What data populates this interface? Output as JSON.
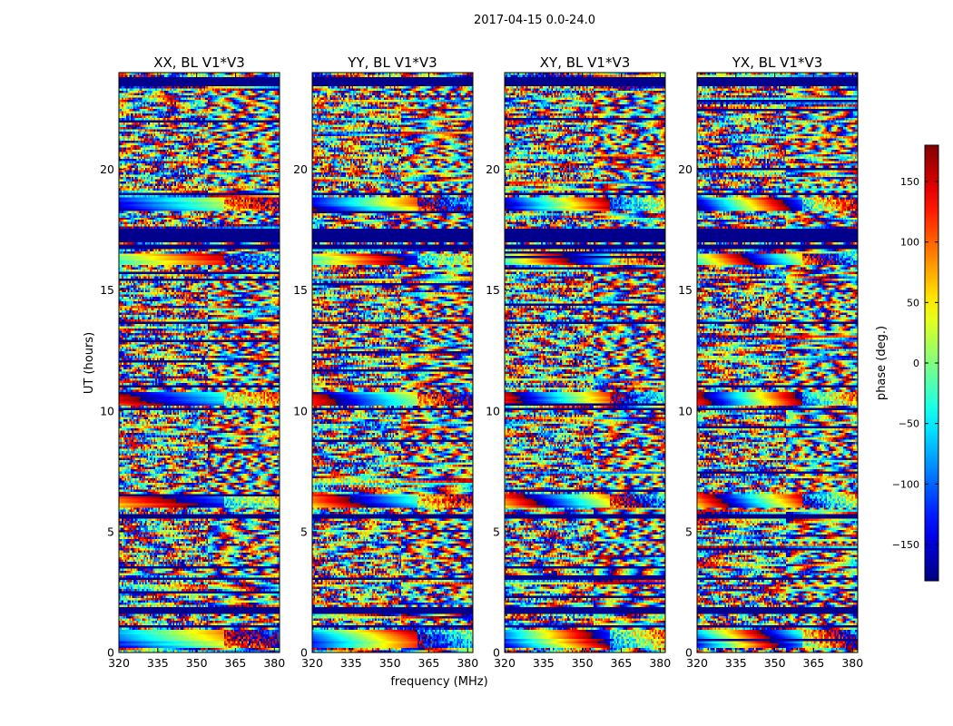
{
  "suptitle": "2017-04-15 0.0-24.0",
  "chart_data": {
    "type": "heatmap",
    "xlabel": "frequency (MHz)",
    "ylabel": "UT (hours)",
    "xlim": [
      320,
      382
    ],
    "ylim": [
      0,
      24
    ],
    "x_ticks": [
      320,
      335,
      350,
      365,
      380
    ],
    "y_ticks": [
      0,
      5,
      10,
      15,
      20
    ],
    "grid": false,
    "colormap": "jet",
    "panels": [
      {
        "title": "XX, BL V1*V3"
      },
      {
        "title": "YY, BL V1*V3"
      },
      {
        "title": "XY, BL V1*V3"
      },
      {
        "title": "YX, BL V1*V3"
      }
    ],
    "colorbar": {
      "label": "phase (deg.)",
      "range": [
        -180,
        180
      ],
      "ticks": [
        -150,
        -100,
        -50,
        0,
        50,
        100,
        150
      ],
      "tick_labels": [
        "−150",
        "−100",
        "−50",
        "0",
        "50",
        "100",
        "150"
      ]
    },
    "flagged_bands_ut": [
      [
        23.4,
        23.85
      ],
      [
        17.0,
        17.55
      ],
      [
        16.7,
        16.85
      ],
      [
        10.0,
        10.15
      ],
      [
        5.55,
        5.7
      ],
      [
        1.55,
        1.9
      ],
      [
        1.0,
        1.1
      ],
      [
        3.0,
        3.1
      ],
      [
        18.9,
        19.0
      ],
      [
        13.6,
        13.7
      ]
    ],
    "coherent_fringe_bands_ut": [
      [
        10.2,
        10.8
      ],
      [
        16.0,
        16.5
      ],
      [
        18.3,
        18.8
      ],
      [
        0.2,
        0.9
      ],
      [
        6.0,
        6.6
      ]
    ]
  }
}
